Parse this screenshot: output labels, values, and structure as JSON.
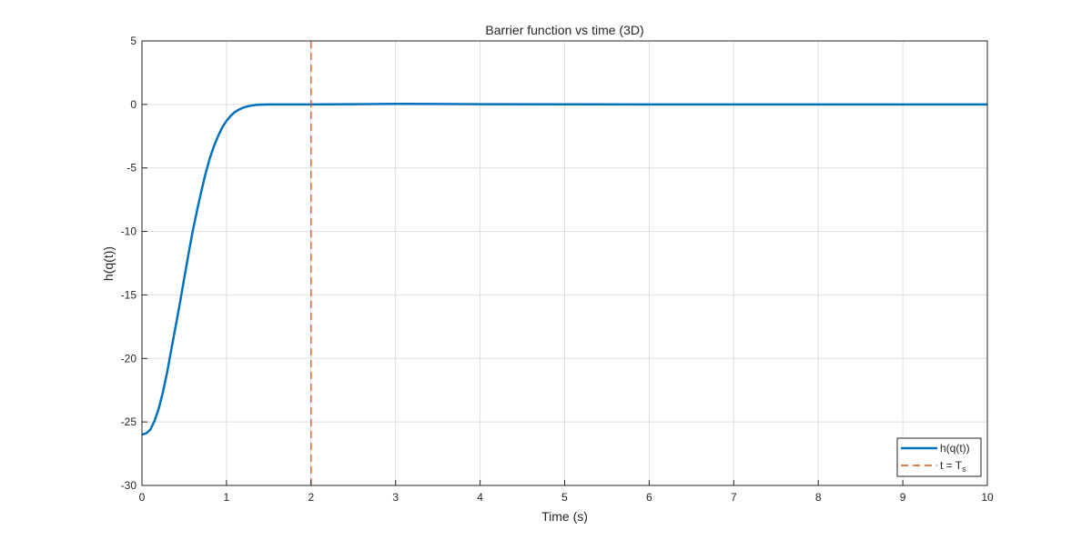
{
  "chart_data": {
    "type": "line",
    "title": "Barrier function vs time (3D)",
    "xlabel": "Time (s)",
    "ylabel": "h(q(t))",
    "xlim": [
      0,
      10
    ],
    "ylim": [
      -30,
      5
    ],
    "xticks": [
      0,
      1,
      2,
      3,
      4,
      5,
      6,
      7,
      8,
      9,
      10
    ],
    "yticks": [
      -30,
      -25,
      -20,
      -15,
      -10,
      -5,
      0,
      5
    ],
    "grid": true,
    "legend_position": "bottom-right",
    "series": [
      {
        "name": "h(q(t))",
        "color": "#0072BD",
        "style": "solid",
        "x": [
          0,
          0.05,
          0.1,
          0.15,
          0.2,
          0.25,
          0.3,
          0.35,
          0.4,
          0.45,
          0.5,
          0.55,
          0.6,
          0.65,
          0.7,
          0.75,
          0.8,
          0.85,
          0.9,
          0.95,
          1.0,
          1.05,
          1.1,
          1.15,
          1.2,
          1.25,
          1.3,
          1.35,
          1.4,
          1.5,
          1.6,
          1.8,
          2.0,
          2.5,
          3.0,
          3.5,
          4.0,
          5.0,
          6.0,
          7.0,
          8.0,
          9.0,
          10.0
        ],
        "y": [
          -26.0,
          -25.9,
          -25.6,
          -24.9,
          -23.9,
          -22.6,
          -21.0,
          -19.2,
          -17.4,
          -15.6,
          -13.7,
          -11.8,
          -10.0,
          -8.4,
          -6.9,
          -5.5,
          -4.3,
          -3.3,
          -2.5,
          -1.8,
          -1.3,
          -0.9,
          -0.6,
          -0.4,
          -0.25,
          -0.15,
          -0.08,
          -0.04,
          -0.02,
          0.0,
          0.0,
          0.0,
          0.0,
          0.02,
          0.04,
          0.03,
          0.02,
          0.01,
          0.0,
          0.0,
          0.0,
          0.0,
          0.0
        ]
      },
      {
        "name": "t = T",
        "name_subscript": "s",
        "color": "#D95319",
        "style": "dashed",
        "vertical_x": 2
      }
    ]
  }
}
